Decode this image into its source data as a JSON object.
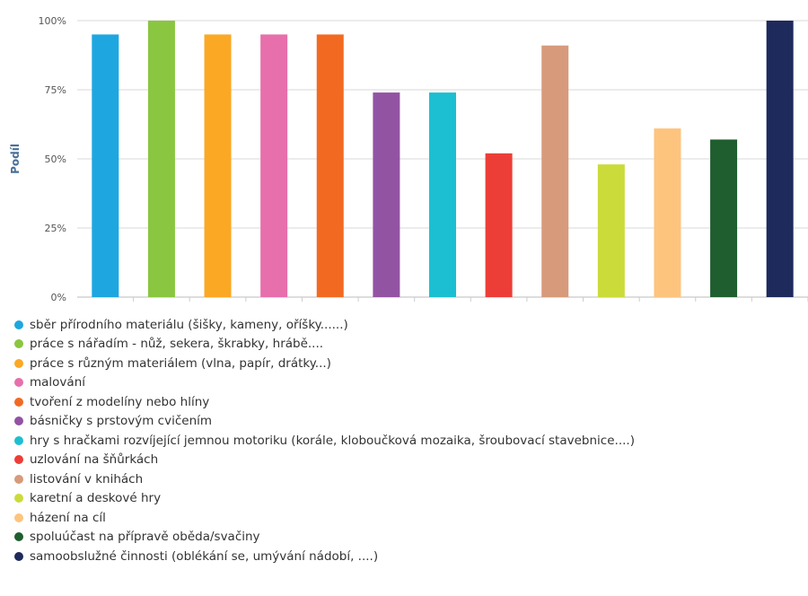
{
  "chart_data": {
    "type": "bar",
    "title": "",
    "xlabel": "",
    "ylabel": "Podíl",
    "ylim": [
      0,
      100
    ],
    "yticks": [
      0,
      25,
      50,
      75,
      100
    ],
    "ytick_labels": [
      "0%",
      "25%",
      "50%",
      "75%",
      "100%"
    ],
    "grid": true,
    "legend_position": "bottom",
    "categories": [
      "sběr přírodního materiálu (šišky, kameny, oříšky......)",
      "práce s nářadím - nůž, sekera, škrabky, hrábě....",
      "práce s různým materiálem (vlna, papír, drátky...)",
      "malování",
      "tvoření z modelíny nebo hlíny",
      "básničky s prstovým cvičením",
      "hry s hračkami rozvíjející jemnou motoriku (korále, kloboučková mozaika, šroubovací stavebnice....)",
      "uzlování na šňůrkách",
      "listování v knihách",
      "karetní a deskové hry",
      "házení na cíl",
      "spoluúčast na přípravě oběda/svačiny",
      "samoobslužné činnosti (oblékání se, umývání nádobí, ....)"
    ],
    "values": [
      95,
      100,
      95,
      95,
      95,
      74,
      74,
      52,
      91,
      48,
      61,
      57,
      100
    ],
    "colors": [
      "#1ea6e0",
      "#8ac640",
      "#fba825",
      "#e76fac",
      "#f26a22",
      "#9353a3",
      "#1cbfd1",
      "#ec3e37",
      "#d79a7b",
      "#cbdb3a",
      "#fdc47e",
      "#1f5e2f",
      "#1e2a5c"
    ]
  }
}
